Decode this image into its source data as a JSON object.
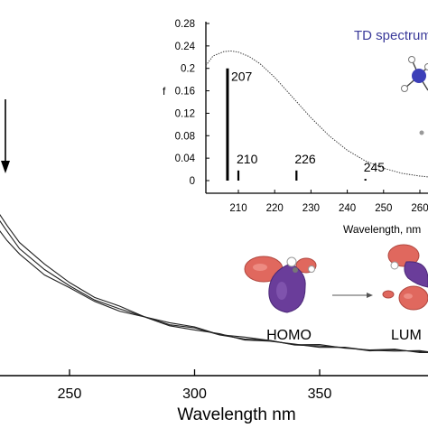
{
  "chart_data": [
    {
      "type": "line",
      "title": "",
      "xlabel": "Wavelength nm",
      "ylabel": "",
      "xlim": [
        210,
        410
      ],
      "x_ticks": [
        "250",
        "300",
        "350"
      ],
      "grid": false,
      "legend": "none",
      "annotations": [
        "↓ (arrow indicating decrease of the band)"
      ],
      "series": [
        {
          "x": [
            210,
            215,
            220,
            225,
            230,
            240,
            250,
            260,
            270,
            280,
            290,
            300,
            310,
            320,
            330,
            340,
            350,
            360,
            370,
            380,
            390,
            400,
            410
          ],
          "y": [
            0.88,
            0.8,
            0.7,
            0.62,
            0.56,
            0.47,
            0.4,
            0.345,
            0.3,
            0.265,
            0.235,
            0.21,
            0.19,
            0.17,
            0.155,
            0.145,
            0.135,
            0.125,
            0.12,
            0.115,
            0.11,
            0.105,
            0.1
          ]
        },
        {
          "x": [
            210,
            215,
            220,
            225,
            230,
            240,
            250,
            260,
            270,
            280,
            290,
            300,
            310,
            320,
            330,
            340,
            350,
            360,
            370,
            380,
            390,
            400,
            410
          ],
          "y": [
            0.9,
            0.84,
            0.75,
            0.66,
            0.59,
            0.49,
            0.41,
            0.355,
            0.305,
            0.27,
            0.24,
            0.215,
            0.19,
            0.172,
            0.157,
            0.146,
            0.136,
            0.126,
            0.12,
            0.115,
            0.11,
            0.105,
            0.1
          ]
        },
        {
          "x": [
            210,
            215,
            220,
            225,
            230,
            240,
            250,
            260,
            270,
            280,
            290,
            300,
            310,
            320,
            330,
            340,
            350,
            360,
            370,
            380,
            390,
            400,
            410
          ],
          "y": [
            0.93,
            0.87,
            0.78,
            0.69,
            0.62,
            0.51,
            0.43,
            0.365,
            0.315,
            0.275,
            0.245,
            0.22,
            0.195,
            0.175,
            0.16,
            0.148,
            0.138,
            0.128,
            0.122,
            0.116,
            0.111,
            0.106,
            0.101
          ]
        }
      ]
    },
    {
      "type": "bar",
      "title": "TD spectrum",
      "xlabel": "Wavelength, nm",
      "ylabel": "f",
      "xlim": [
        200,
        270
      ],
      "ylim": [
        0,
        0.28
      ],
      "x_ticks": [
        "210",
        "220",
        "230",
        "240",
        "250",
        "260"
      ],
      "y_ticks": [
        "0",
        "0.04",
        "0.08",
        "0.12",
        "0.16",
        "0.2",
        "0.24",
        "0.28"
      ],
      "sticks": [
        {
          "x": 207,
          "f": 0.2,
          "label": "207"
        },
        {
          "x": 210,
          "f": 0.018,
          "label": "210"
        },
        {
          "x": 226,
          "f": 0.018,
          "label": "226"
        },
        {
          "x": 245,
          "f": 0.003,
          "label": "245"
        }
      ],
      "envelope": {
        "x": [
          200,
          203,
          206,
          208,
          210,
          213,
          216,
          220,
          225,
          230,
          235,
          240,
          245,
          250,
          255,
          260,
          265,
          270
        ],
        "y": [
          0.205,
          0.222,
          0.23,
          0.231,
          0.229,
          0.221,
          0.208,
          0.184,
          0.148,
          0.112,
          0.08,
          0.054,
          0.035,
          0.022,
          0.013,
          0.008,
          0.005,
          0.003
        ]
      }
    }
  ],
  "orbitals": {
    "homo_label": "HOMO",
    "lumo_label": "LUM",
    "lobe_colors": {
      "positive": "#e0685e",
      "negative": "#6a3d9a"
    }
  },
  "colors": {
    "axis": "#000000",
    "curve": "#222222",
    "title": "#3b3b9a"
  }
}
